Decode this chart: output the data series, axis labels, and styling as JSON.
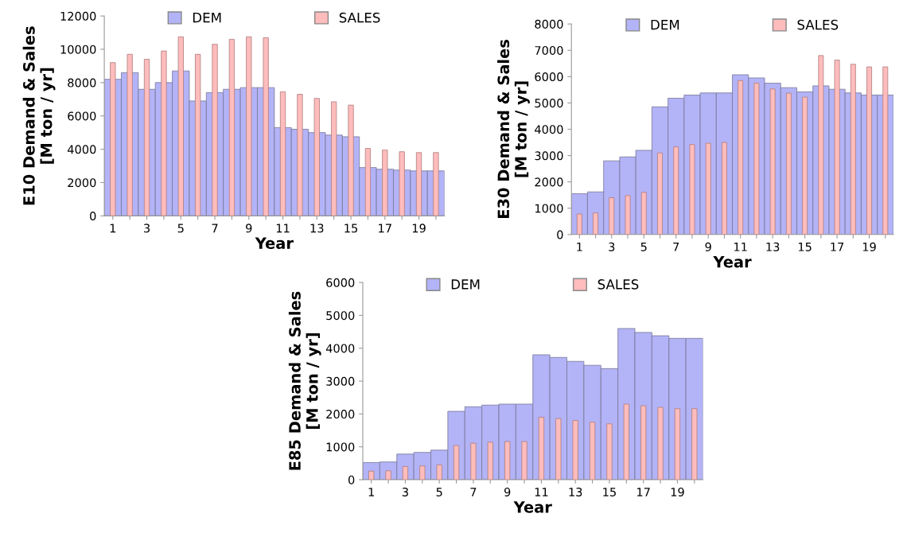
{
  "chart_data": [
    {
      "type": "bar",
      "xlabel": "Year",
      "ylabel": "E10 Demand & Sales\n[M ton / yr]",
      "categories": [
        "1",
        null,
        "3",
        null,
        "5",
        null,
        "7",
        null,
        "9",
        null,
        "11",
        null,
        "13",
        null,
        "15",
        null,
        "17",
        null,
        "19",
        null
      ],
      "ylim": [
        0,
        12000
      ],
      "yticks": [
        0,
        2000,
        4000,
        6000,
        8000,
        10000,
        12000
      ],
      "grid": false,
      "legend": "top",
      "series": [
        {
          "name": "DEM",
          "color": "#b3b3f7",
          "values": [
            8200,
            8600,
            7600,
            8000,
            8700,
            6900,
            7400,
            7600,
            7700,
            7700,
            5300,
            5200,
            5000,
            4850,
            4750,
            2900,
            2800,
            2750,
            2700,
            2700
          ]
        },
        {
          "name": "SALES",
          "color": "#ffbcbc",
          "values": [
            9200,
            9700,
            9400,
            9900,
            10750,
            9700,
            10300,
            10600,
            10750,
            10700,
            7450,
            7300,
            7050,
            6850,
            6650,
            4050,
            3950,
            3850,
            3800,
            3800
          ]
        }
      ]
    },
    {
      "type": "bar",
      "xlabel": "Year",
      "ylabel": "E30 Demand & Sales\n[M ton / yr]",
      "categories": [
        "1",
        null,
        "3",
        null,
        "5",
        null,
        "7",
        null,
        "9",
        null,
        "11",
        null,
        "13",
        null,
        "15",
        null,
        "17",
        null,
        "19",
        null
      ],
      "ylim": [
        0,
        8000
      ],
      "yticks": [
        0,
        1000,
        2000,
        3000,
        4000,
        5000,
        6000,
        7000,
        8000
      ],
      "grid": false,
      "legend": "top",
      "series": [
        {
          "name": "DEM",
          "color": "#b3b3f7",
          "values": [
            1550,
            1620,
            2800,
            2950,
            3200,
            4850,
            5180,
            5300,
            5380,
            5380,
            6070,
            5950,
            5750,
            5580,
            5420,
            5650,
            5520,
            5380,
            5300,
            5300
          ]
        },
        {
          "name": "SALES",
          "color": "#ffbcbc",
          "values": [
            780,
            820,
            1400,
            1480,
            1600,
            3100,
            3330,
            3420,
            3470,
            3500,
            5850,
            5750,
            5530,
            5370,
            5220,
            6800,
            6630,
            6470,
            6370,
            6370
          ]
        }
      ]
    },
    {
      "type": "bar",
      "xlabel": "Year",
      "ylabel": "E85 Demand & Sales\n[M ton / yr]",
      "categories": [
        "1",
        null,
        "3",
        null,
        "5",
        null,
        "7",
        null,
        "9",
        null,
        "11",
        null,
        "13",
        null,
        "15",
        null,
        "17",
        null,
        "19",
        null
      ],
      "ylim": [
        0,
        6000
      ],
      "yticks": [
        0,
        1000,
        2000,
        3000,
        4000,
        5000,
        6000
      ],
      "grid": false,
      "legend": "top",
      "series": [
        {
          "name": "DEM",
          "color": "#b3b3f7",
          "values": [
            520,
            540,
            780,
            830,
            900,
            2080,
            2220,
            2270,
            2300,
            2300,
            3800,
            3720,
            3600,
            3480,
            3380,
            4600,
            4480,
            4380,
            4300,
            4300
          ]
        },
        {
          "name": "SALES",
          "color": "#ffbcbc",
          "values": [
            260,
            270,
            400,
            420,
            450,
            1040,
            1110,
            1140,
            1160,
            1160,
            1900,
            1860,
            1800,
            1750,
            1700,
            2300,
            2250,
            2200,
            2160,
            2160
          ]
        }
      ]
    }
  ]
}
